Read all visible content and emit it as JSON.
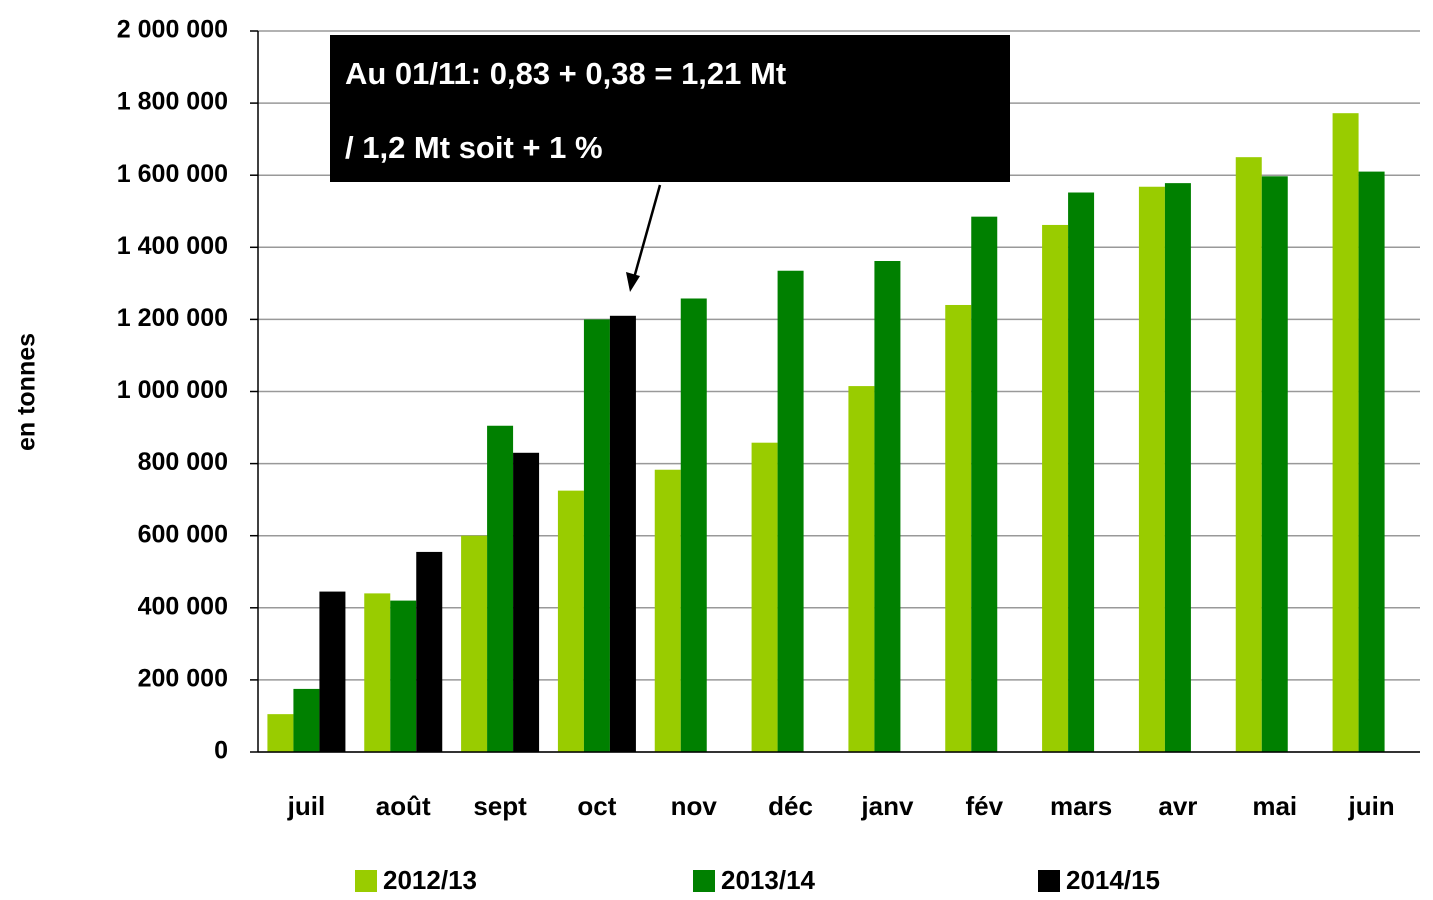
{
  "chart_data": {
    "type": "bar",
    "y_label": "en tonnes",
    "annotation": [
      "Au 01/11: 0,83 + 0,38 = 1,21 Mt",
      "/ 1,2 Mt soit + 1 %"
    ],
    "categories": [
      "juil",
      "août",
      "sept",
      "oct",
      "nov",
      "déc",
      "janv",
      "fév",
      "mars",
      "avr",
      "mai",
      "juin"
    ],
    "series": [
      {
        "name": "2012/13",
        "color": "#99cc00",
        "values": [
          105000,
          440000,
          600000,
          725000,
          783000,
          858000,
          1015000,
          1240000,
          1462000,
          1568000,
          1650000,
          1772000
        ]
      },
      {
        "name": "2013/14",
        "color": "#008000",
        "values": [
          175000,
          420000,
          905000,
          1200000,
          1258000,
          1335000,
          1362000,
          1485000,
          1552000,
          1578000,
          1597000,
          1610000
        ]
      },
      {
        "name": "2014/15",
        "color": "#000000",
        "values": [
          445000,
          555000,
          830000,
          1210000,
          null,
          null,
          null,
          null,
          null,
          null,
          null,
          null
        ]
      }
    ],
    "ylim": [
      0,
      2000000
    ],
    "yticks": [
      0,
      {
        "value": 200000,
        "label": "200 000"
      },
      {
        "value": 400000,
        "label": "400 000"
      },
      {
        "value": 600000,
        "label": "600 000"
      },
      {
        "value": 800000,
        "label": "800 000"
      },
      {
        "value": 1000000,
        "label": "1 000 000"
      },
      {
        "value": 1200000,
        "label": "1 200 000"
      },
      {
        "value": 1400000,
        "label": "1 400 000"
      },
      {
        "value": 1600000,
        "label": "1 600 000"
      },
      {
        "value": 1800000,
        "label": "1 800 000"
      },
      {
        "value": 2000000,
        "label": "2 000 000"
      }
    ],
    "grid": true,
    "legend": "bottom"
  }
}
